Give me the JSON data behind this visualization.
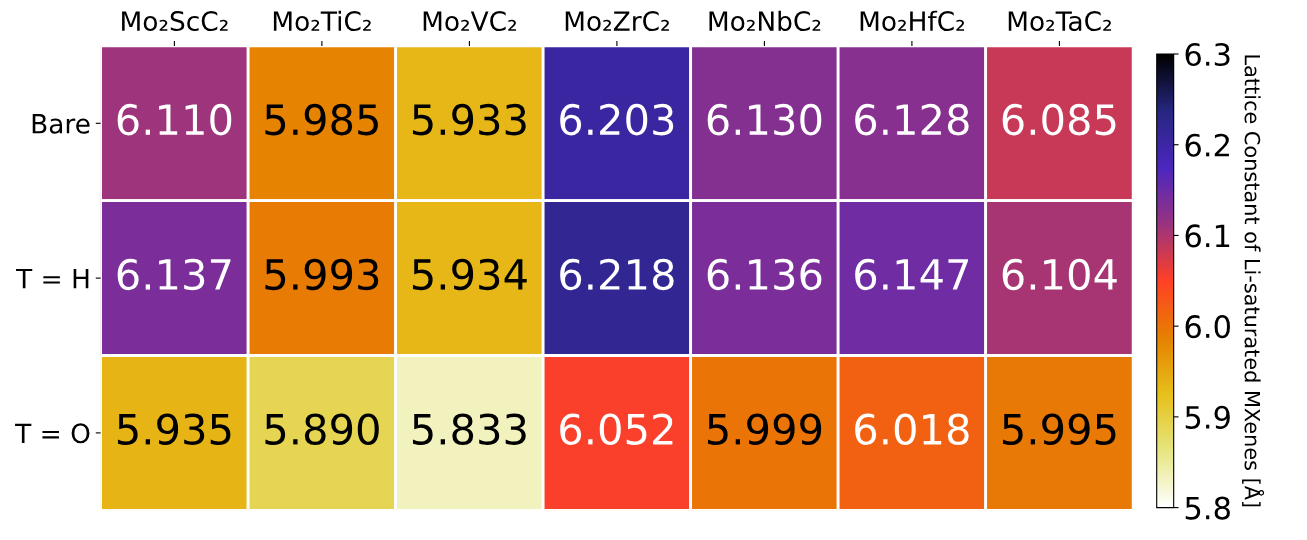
{
  "chart_data": {
    "type": "heatmap",
    "categories": [
      "Mo₂ScC₂",
      "Mo₂TiC₂",
      "Mo₂VC₂",
      "Mo₂ZrC₂",
      "Mo₂NbC₂",
      "Mo₂HfC₂",
      "Mo₂TaC₂"
    ],
    "y_categories": [
      "Bare",
      "T = H",
      "T = O"
    ],
    "cells": [
      [
        6.11,
        5.985,
        5.933,
        6.203,
        6.13,
        6.128,
        6.085
      ],
      [
        6.137,
        5.993,
        5.934,
        6.218,
        6.136,
        6.147,
        6.104
      ],
      [
        5.935,
        5.89,
        5.833,
        6.052,
        5.999,
        6.018,
        5.995
      ]
    ],
    "cell_labels": [
      [
        "6.110",
        "5.985",
        "5.933",
        "6.203",
        "6.130",
        "6.128",
        "6.085"
      ],
      [
        "6.137",
        "5.993",
        "5.934",
        "6.218",
        "6.136",
        "6.147",
        "6.104"
      ],
      [
        "5.935",
        "5.890",
        "5.833",
        "6.052",
        "5.999",
        "6.018",
        "5.995"
      ]
    ],
    "data_labels": true,
    "clim": [
      5.8,
      6.3
    ],
    "cticks": [
      5.8,
      5.9,
      {
        "value": 6,
        "label": "6.0"
      },
      6.1,
      6.2,
      6.3
    ],
    "clabel": "Lattice Constant of Li-saturated MXenes [Å]"
  }
}
